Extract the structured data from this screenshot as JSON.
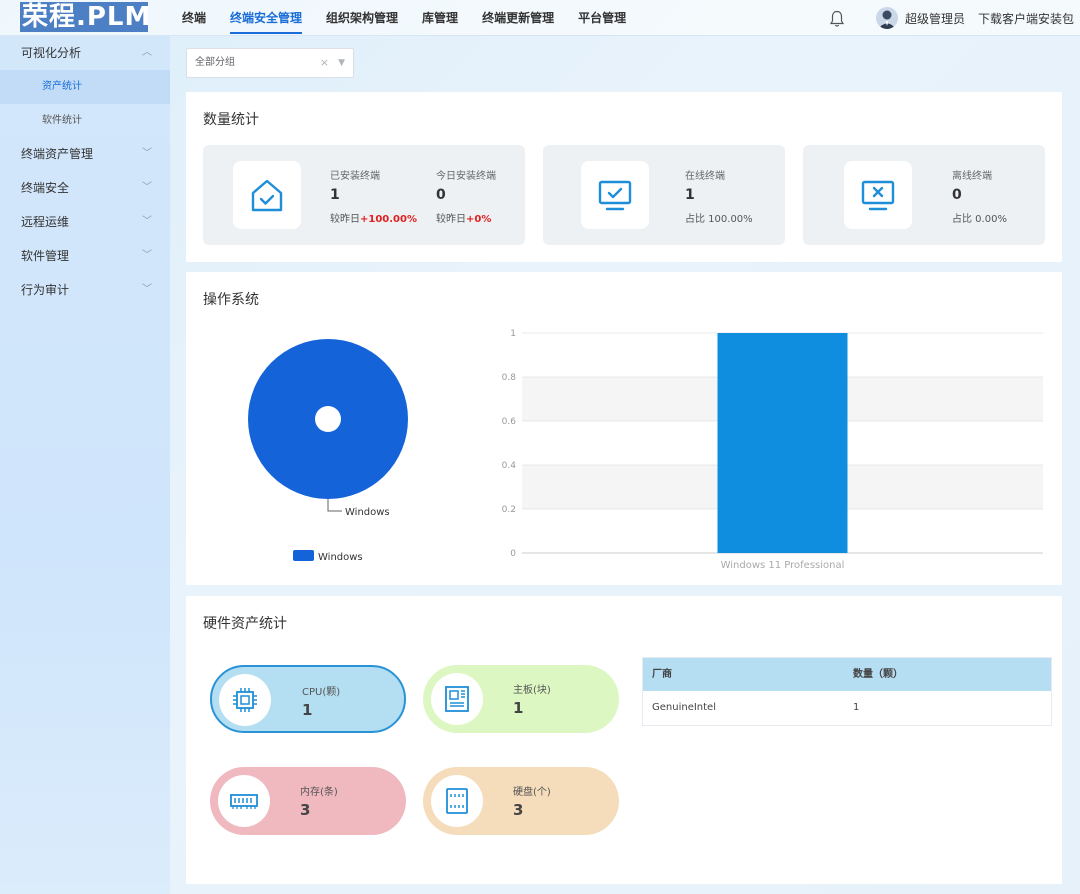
{
  "app": {
    "logo": "荣程.PLM"
  },
  "nav": {
    "items": [
      {
        "label": "终端",
        "active": false
      },
      {
        "label": "终端安全管理",
        "active": true
      },
      {
        "label": "组织架构管理",
        "active": false
      },
      {
        "label": "库管理",
        "active": false
      },
      {
        "label": "终端更新管理",
        "active": false
      },
      {
        "label": "平台管理",
        "active": false
      }
    ]
  },
  "header": {
    "user": "超级管理员",
    "download": "下载客户端安装包"
  },
  "sidebar": {
    "group_title": "可视化分析",
    "sub_items": [
      "资产统计",
      "软件统计"
    ],
    "items": [
      "终端资产管理",
      "终端安全",
      "远程运维",
      "软件管理",
      "行为审计"
    ]
  },
  "filter": {
    "value": "全部分组",
    "clear": "×",
    "arrow": "▼"
  },
  "stats": {
    "title": "数量统计",
    "installed": {
      "label": "已安装终端",
      "value": "1",
      "sub_prefix": "较昨日",
      "sub_value": "+100.00%"
    },
    "today": {
      "label": "今日安装终端",
      "value": "0",
      "sub_prefix": "较昨日",
      "sub_value": "+0%"
    },
    "online": {
      "label": "在线终端",
      "value": "1",
      "sub": "占比 100.00%"
    },
    "offline": {
      "label": "离线终端",
      "value": "0",
      "sub": "占比 0.00%"
    }
  },
  "os": {
    "title": "操作系统"
  },
  "hardware": {
    "title": "硬件资产统计",
    "cpu": {
      "label": "CPU(颗)",
      "value": "1"
    },
    "board": {
      "label": "主板(块)",
      "value": "1"
    },
    "memory": {
      "label": "内存(条)",
      "value": "3"
    },
    "disk": {
      "label": "硬盘(个)",
      "value": "3"
    },
    "table": {
      "headers": [
        "厂商",
        "数量（颗）"
      ],
      "rows": [
        [
          "GenuineIntel",
          "1"
        ]
      ]
    }
  },
  "colors": {
    "accent": "#1a6dd8",
    "pie": "#1463d8",
    "bar": "#0f8ee0"
  },
  "chart_data": [
    {
      "type": "pie",
      "slices": [
        {
          "label": "Windows",
          "value": 1
        }
      ],
      "legend": [
        "Windows"
      ],
      "legend_position": "bottom"
    },
    {
      "type": "bar",
      "categories": [
        "Windows 11 Professional"
      ],
      "values": [
        1
      ],
      "ylim": [
        0,
        1
      ],
      "yticks": [
        "0",
        "0.2",
        "0.4",
        "0.6",
        "0.8",
        "1"
      ]
    }
  ]
}
